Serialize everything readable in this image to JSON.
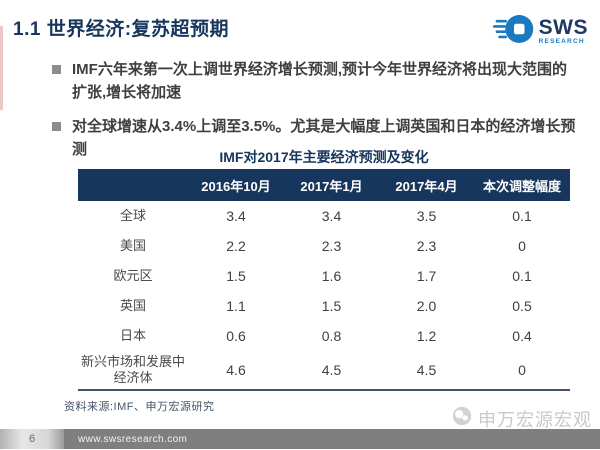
{
  "slide": {
    "title": "1.1 世界经济:复苏超预期",
    "page_number": "6",
    "footer_url": "www.swsresearch.com",
    "watermark": "申万宏源宏观"
  },
  "logo": {
    "text": "SWS",
    "subtext": "RESEARCH"
  },
  "bullets": [
    "IMF六年来第一次上调世界经济增长预测,预计今年世界经济将出现大范围的扩张,增长将加速",
    "对全球增速从3.4%上调至3.5%。尤其是大幅度上调英国和日本的经济增长预测"
  ],
  "table": {
    "title": "IMF对2017年主要经济预测及变化",
    "source": "资料来源:IMF、申万宏源研究",
    "columns": [
      "",
      "2016年10月",
      "2017年1月",
      "2017年4月",
      "本次调整幅度"
    ],
    "rows": [
      {
        "label": "全球",
        "values": [
          "3.4",
          "3.4",
          "3.5",
          "0.1"
        ]
      },
      {
        "label": "美国",
        "values": [
          "2.2",
          "2.3",
          "2.3",
          "0"
        ]
      },
      {
        "label": "欧元区",
        "values": [
          "1.5",
          "1.6",
          "1.7",
          "0.1"
        ]
      },
      {
        "label": "英国",
        "values": [
          "1.1",
          "1.5",
          "2.0",
          "0.5"
        ]
      },
      {
        "label": "日本",
        "values": [
          "0.6",
          "0.8",
          "1.2",
          "0.4"
        ]
      },
      {
        "label": "新兴市场和发展中经济体",
        "values": [
          "4.6",
          "4.5",
          "4.5",
          "0"
        ]
      }
    ]
  },
  "colors": {
    "navy": "#17365d",
    "accent_blue": "#1b79c0",
    "bullet_gray": "#8c8c8c",
    "body_text": "#3f3f3f",
    "footer_gray": "#7f7f7f",
    "watermark_gray": "#c9c9c9"
  }
}
